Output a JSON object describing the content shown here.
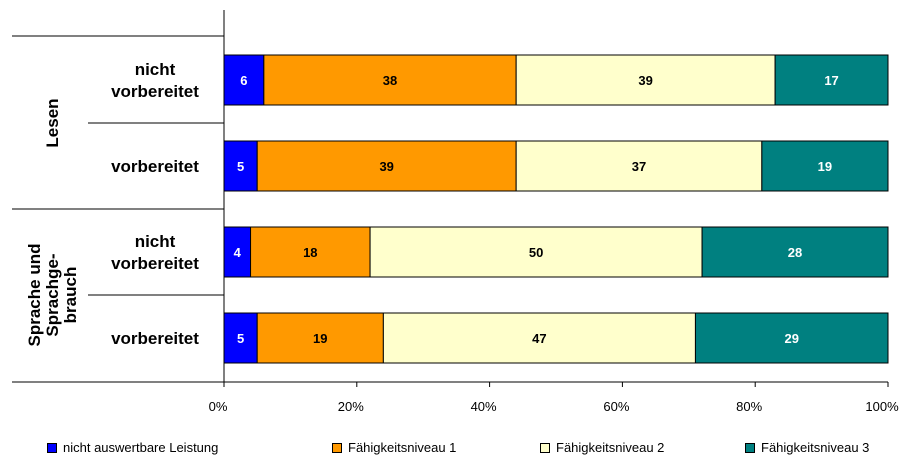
{
  "chart_data": {
    "type": "bar",
    "orientation": "horizontal",
    "stacked": true,
    "groups": [
      {
        "label_lines": [
          "Lesen"
        ],
        "rows": [
          0,
          1
        ]
      },
      {
        "label_lines": [
          "Sprache und",
          "Sprachge-",
          "brauch"
        ],
        "rows": [
          2,
          3
        ]
      }
    ],
    "categories": [
      [
        "nicht",
        "vorbereitet"
      ],
      [
        "vorbereitet"
      ],
      [
        "nicht",
        "vorbereitet"
      ],
      [
        "vorbereitet"
      ]
    ],
    "series": [
      {
        "name": "nicht auswertbare Leistung",
        "color": "#0000FF",
        "label_color": "#FFFFFF",
        "values": [
          6,
          5,
          4,
          5
        ]
      },
      {
        "name": "Fähigkeitsniveau 1",
        "color": "#FF9900",
        "label_color": "#000000",
        "values": [
          38,
          39,
          18,
          19
        ]
      },
      {
        "name": "Fähigkeitsniveau 2",
        "color": "#FFFFCC",
        "label_color": "#000000",
        "values": [
          39,
          37,
          50,
          47
        ]
      },
      {
        "name": "Fähigkeitsniveau 3",
        "color": "#008080",
        "label_color": "#FFFFFF",
        "values": [
          17,
          19,
          28,
          29
        ]
      }
    ],
    "xlim": [
      0,
      100
    ],
    "x_ticks": [
      "0%",
      "20%",
      "40%",
      "60%",
      "80%",
      "100%"
    ],
    "grid": false,
    "legend_position": "bottom",
    "title": "",
    "xlabel": "",
    "ylabel": ""
  }
}
